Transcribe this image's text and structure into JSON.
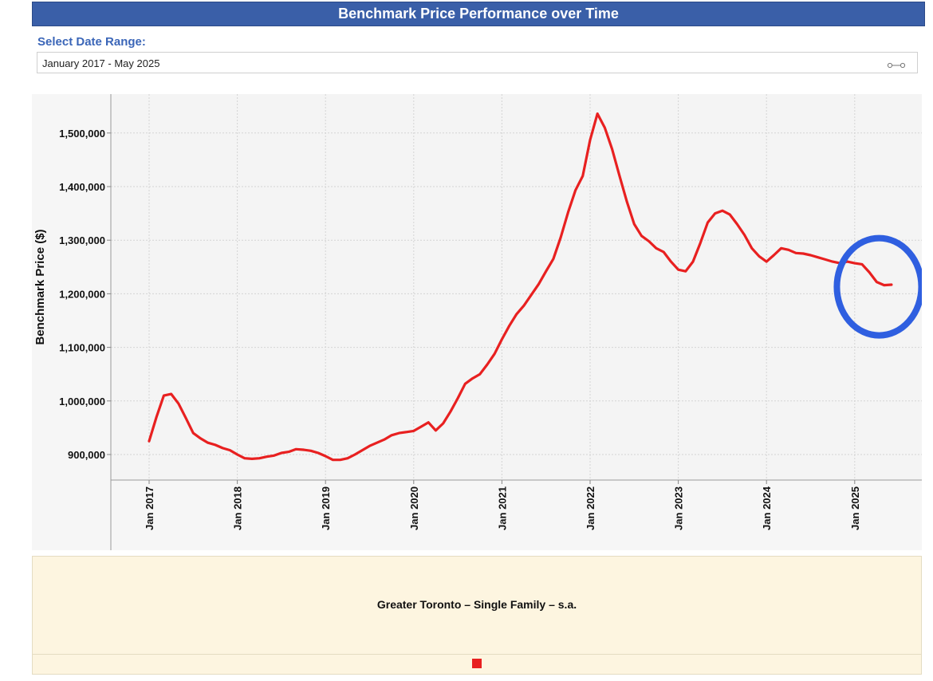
{
  "header": {
    "title": "Benchmark Price Performance over Time"
  },
  "date_range": {
    "label": "Select Date Range:",
    "value": "January 2017 - May 2025"
  },
  "icons": {
    "slider": "range-slider-icon"
  },
  "colors": {
    "line": "#e82020",
    "highlight_circle": "#2f5fe0",
    "title_bg": "#3a5fa8"
  },
  "legend": {
    "series_name": "Greater Toronto – Single Family – s.a."
  },
  "chart_data": {
    "type": "line",
    "title": "Benchmark Price Performance over Time",
    "xlabel": "",
    "ylabel": "Benchmark Price ($)",
    "ylim": [
      855000,
      1570000
    ],
    "yticks": [
      900000,
      1000000,
      1100000,
      1200000,
      1300000,
      1400000,
      1500000
    ],
    "ytick_labels": [
      "900,000",
      "1,000,000",
      "1,100,000",
      "1,200,000",
      "1,300,000",
      "1,400,000",
      "1,500,000"
    ],
    "xtick_labels": [
      "Jan 2017",
      "Jan 2018",
      "Jan 2019",
      "Jan 2020",
      "Jan 2021",
      "Jan 2022",
      "Jan 2023",
      "Jan 2024",
      "Jan 2025"
    ],
    "xtick_years": [
      2017,
      2018,
      2019,
      2020,
      2021,
      2022,
      2023,
      2024,
      2025
    ],
    "grid": true,
    "annotation": {
      "type": "circle",
      "note": "highlights most recent months",
      "x_year": 2025.25,
      "y": 1225000
    },
    "series": [
      {
        "name": "Greater Toronto – Single Family – s.a.",
        "x_start": "2017-01",
        "step": "month",
        "values": [
          925000,
          970000,
          1010000,
          1013000,
          995000,
          968000,
          940000,
          930000,
          922000,
          918000,
          912000,
          908000,
          900000,
          893000,
          892000,
          893000,
          896000,
          898000,
          903000,
          905000,
          910000,
          909000,
          907000,
          903000,
          897000,
          890000,
          890000,
          893000,
          900000,
          908000,
          916000,
          922000,
          928000,
          936000,
          940000,
          942000,
          944000,
          952000,
          960000,
          945000,
          958000,
          980000,
          1005000,
          1032000,
          1042000,
          1050000,
          1068000,
          1088000,
          1115000,
          1140000,
          1162000,
          1178000,
          1198000,
          1218000,
          1242000,
          1265000,
          1305000,
          1352000,
          1393000,
          1420000,
          1487000,
          1536000,
          1510000,
          1470000,
          1420000,
          1372000,
          1330000,
          1308000,
          1298000,
          1285000,
          1278000,
          1260000,
          1245000,
          1242000,
          1260000,
          1295000,
          1333000,
          1350000,
          1355000,
          1348000,
          1330000,
          1310000,
          1285000,
          1270000,
          1260000,
          1272000,
          1285000,
          1282000,
          1276000,
          1275000,
          1272000,
          1268000,
          1264000,
          1260000,
          1257000,
          1260000,
          1257000,
          1255000,
          1240000,
          1222000,
          1216000,
          1217000
        ]
      }
    ]
  }
}
